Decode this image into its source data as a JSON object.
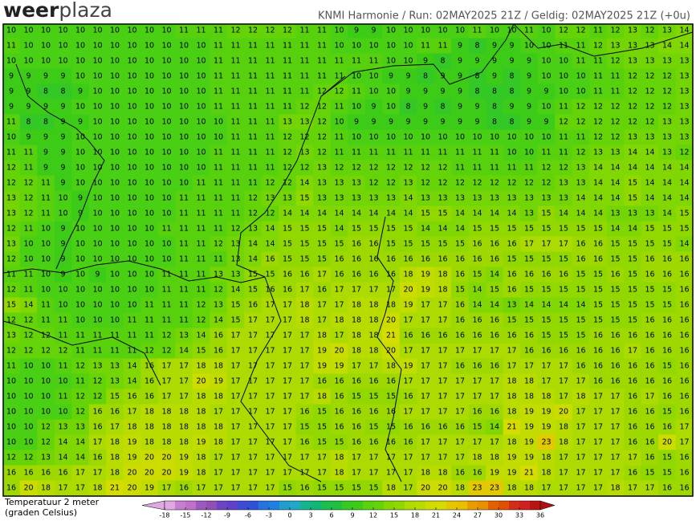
{
  "header": {
    "brand": [
      "weer",
      "plaza"
    ],
    "info": "KNMI Harmonie / Run: 02MAY2025 21Z / Geldig: 02MAY2025 21Z (+0u)"
  },
  "legend": {
    "title": [
      "Temperatuur 2 meter",
      "(graden Celsius)"
    ],
    "ticks": [
      -18,
      -15,
      -12,
      -9,
      -6,
      -3,
      0,
      3,
      6,
      9,
      12,
      15,
      18,
      21,
      24,
      27,
      30,
      33,
      36
    ],
    "colors": [
      "#e0a8e0",
      "#c070c8",
      "#9050b8",
      "#6040c8",
      "#3050d8",
      "#2080e0",
      "#20a8c8",
      "#10b878",
      "#20c040",
      "#3ccc18",
      "#64d408",
      "#90d800",
      "#b8dc00",
      "#d6dc00",
      "#e8c000",
      "#e89000",
      "#e05000",
      "#d02020",
      "#b01010"
    ]
  },
  "map": {
    "grid": [
      [
        10,
        10,
        10,
        10,
        10,
        10,
        10,
        10,
        10,
        10,
        11,
        11,
        11,
        12,
        12,
        12,
        12,
        11,
        11,
        10,
        9,
        9,
        10,
        10,
        10,
        10,
        10,
        11,
        10,
        10,
        11,
        10,
        12,
        12,
        11,
        12,
        13,
        12,
        13,
        14
      ],
      [
        11,
        10,
        10,
        10,
        10,
        10,
        10,
        10,
        10,
        10,
        10,
        10,
        11,
        11,
        11,
        11,
        11,
        11,
        11,
        10,
        10,
        10,
        10,
        10,
        11,
        11,
        9,
        8,
        9,
        9,
        10,
        10,
        11,
        11,
        12,
        13,
        13,
        13,
        14,
        14
      ],
      [
        10,
        10,
        10,
        10,
        10,
        10,
        10,
        10,
        10,
        10,
        10,
        10,
        11,
        11,
        11,
        11,
        11,
        11,
        11,
        11,
        11,
        11,
        10,
        10,
        9,
        8,
        9,
        9,
        9,
        9,
        9,
        10,
        10,
        11,
        11,
        12,
        13,
        13,
        13,
        13
      ],
      [
        9,
        9,
        9,
        9,
        10,
        10,
        10,
        10,
        10,
        10,
        10,
        10,
        11,
        11,
        11,
        11,
        11,
        11,
        11,
        11,
        10,
        10,
        9,
        9,
        8,
        9,
        9,
        8,
        9,
        8,
        9,
        10,
        10,
        10,
        11,
        11,
        12,
        12,
        12,
        13
      ],
      [
        9,
        9,
        8,
        8,
        9,
        10,
        10,
        10,
        10,
        10,
        10,
        10,
        11,
        11,
        11,
        11,
        11,
        11,
        12,
        12,
        11,
        10,
        10,
        9,
        9,
        9,
        9,
        8,
        8,
        8,
        9,
        9,
        10,
        10,
        11,
        11,
        12,
        12,
        12,
        13
      ],
      [
        9,
        9,
        9,
        9,
        10,
        10,
        10,
        10,
        10,
        10,
        10,
        10,
        11,
        11,
        11,
        11,
        11,
        12,
        12,
        11,
        10,
        9,
        10,
        8,
        9,
        8,
        9,
        9,
        8,
        9,
        9,
        10,
        11,
        12,
        12,
        12,
        12,
        12,
        12,
        13
      ],
      [
        11,
        8,
        8,
        9,
        9,
        10,
        10,
        10,
        10,
        10,
        10,
        10,
        10,
        11,
        11,
        11,
        13,
        13,
        12,
        10,
        9,
        9,
        9,
        9,
        9,
        9,
        9,
        9,
        8,
        8,
        9,
        9,
        12,
        12,
        12,
        12,
        12,
        12,
        13,
        13
      ],
      [
        10,
        9,
        9,
        9,
        10,
        10,
        10,
        10,
        10,
        10,
        10,
        10,
        10,
        11,
        11,
        11,
        12,
        12,
        12,
        11,
        10,
        10,
        10,
        10,
        10,
        10,
        10,
        10,
        10,
        10,
        10,
        10,
        11,
        11,
        12,
        12,
        13,
        13,
        13,
        13
      ],
      [
        11,
        11,
        9,
        9,
        10,
        10,
        10,
        10,
        10,
        10,
        10,
        10,
        11,
        11,
        11,
        11,
        12,
        13,
        12,
        11,
        11,
        11,
        11,
        11,
        11,
        11,
        11,
        11,
        11,
        10,
        10,
        11,
        11,
        12,
        13,
        13,
        14,
        14,
        13,
        12
      ],
      [
        12,
        11,
        9,
        9,
        10,
        10,
        10,
        10,
        10,
        10,
        10,
        10,
        11,
        11,
        11,
        11,
        12,
        12,
        13,
        12,
        12,
        12,
        12,
        12,
        12,
        12,
        11,
        11,
        11,
        11,
        11,
        12,
        12,
        13,
        14,
        14,
        14,
        14,
        14,
        14
      ],
      [
        12,
        12,
        11,
        9,
        10,
        10,
        10,
        10,
        10,
        10,
        10,
        11,
        11,
        11,
        11,
        12,
        12,
        14,
        13,
        13,
        13,
        12,
        12,
        13,
        12,
        12,
        12,
        12,
        12,
        12,
        12,
        12,
        13,
        13,
        14,
        14,
        15,
        14,
        14,
        14
      ],
      [
        13,
        12,
        11,
        10,
        9,
        10,
        10,
        10,
        10,
        10,
        11,
        11,
        11,
        11,
        12,
        13,
        13,
        15,
        13,
        13,
        13,
        13,
        13,
        14,
        13,
        13,
        13,
        13,
        13,
        13,
        13,
        13,
        13,
        14,
        14,
        14,
        15,
        14,
        14,
        14
      ],
      [
        13,
        12,
        11,
        10,
        9,
        10,
        10,
        10,
        10,
        10,
        11,
        11,
        11,
        11,
        12,
        12,
        14,
        14,
        14,
        14,
        14,
        14,
        14,
        14,
        15,
        15,
        14,
        14,
        14,
        14,
        13,
        15,
        14,
        14,
        14,
        13,
        13,
        13,
        14,
        15
      ],
      [
        12,
        11,
        10,
        9,
        10,
        10,
        10,
        10,
        10,
        11,
        11,
        11,
        11,
        12,
        13,
        14,
        15,
        15,
        15,
        14,
        15,
        15,
        15,
        15,
        14,
        14,
        14,
        15,
        15,
        15,
        15,
        15,
        15,
        15,
        15,
        14,
        14,
        15,
        15,
        15
      ],
      [
        13,
        10,
        10,
        9,
        10,
        10,
        10,
        10,
        10,
        10,
        11,
        11,
        12,
        13,
        14,
        14,
        15,
        15,
        15,
        15,
        16,
        16,
        15,
        15,
        15,
        15,
        15,
        16,
        16,
        16,
        17,
        17,
        17,
        16,
        16,
        15,
        15,
        15,
        15,
        14
      ],
      [
        12,
        10,
        10,
        9,
        10,
        10,
        10,
        10,
        10,
        10,
        11,
        11,
        11,
        13,
        14,
        16,
        15,
        15,
        15,
        16,
        16,
        16,
        16,
        16,
        16,
        16,
        16,
        16,
        16,
        15,
        15,
        15,
        15,
        16,
        16,
        15,
        15,
        16,
        16,
        16
      ],
      [
        11,
        11,
        10,
        9,
        10,
        9,
        10,
        10,
        10,
        11,
        11,
        11,
        13,
        13,
        15,
        15,
        16,
        16,
        17,
        16,
        16,
        16,
        16,
        18,
        19,
        18,
        16,
        15,
        14,
        16,
        16,
        16,
        16,
        15,
        15,
        16,
        15,
        16,
        16,
        16
      ],
      [
        12,
        11,
        10,
        10,
        10,
        10,
        10,
        10,
        10,
        11,
        11,
        11,
        12,
        14,
        15,
        16,
        16,
        17,
        16,
        17,
        17,
        17,
        17,
        20,
        19,
        18,
        15,
        14,
        15,
        16,
        15,
        15,
        15,
        15,
        15,
        15,
        15,
        15,
        15,
        16
      ],
      [
        15,
        14,
        11,
        10,
        10,
        10,
        10,
        10,
        11,
        11,
        11,
        12,
        13,
        15,
        16,
        17,
        17,
        18,
        17,
        17,
        18,
        18,
        18,
        19,
        17,
        17,
        16,
        14,
        14,
        13,
        14,
        14,
        14,
        14,
        15,
        15,
        15,
        15,
        15,
        16
      ],
      [
        12,
        12,
        11,
        11,
        10,
        10,
        10,
        11,
        11,
        11,
        11,
        12,
        14,
        15,
        17,
        17,
        17,
        18,
        17,
        18,
        18,
        18,
        20,
        17,
        17,
        17,
        16,
        16,
        16,
        15,
        15,
        15,
        15,
        15,
        15,
        15,
        15,
        16,
        16,
        16
      ],
      [
        13,
        12,
        12,
        11,
        11,
        11,
        11,
        11,
        11,
        12,
        13,
        14,
        16,
        17,
        17,
        17,
        17,
        17,
        18,
        17,
        18,
        18,
        21,
        16,
        16,
        16,
        16,
        16,
        16,
        16,
        16,
        15,
        15,
        15,
        16,
        16,
        16,
        16,
        16,
        16
      ],
      [
        12,
        12,
        12,
        12,
        11,
        11,
        11,
        11,
        12,
        12,
        14,
        15,
        16,
        17,
        17,
        17,
        17,
        17,
        19,
        20,
        18,
        18,
        20,
        17,
        17,
        17,
        17,
        17,
        17,
        17,
        16,
        16,
        16,
        16,
        16,
        16,
        17,
        16,
        16,
        16
      ],
      [
        11,
        10,
        10,
        11,
        12,
        13,
        13,
        14,
        16,
        17,
        17,
        18,
        18,
        17,
        17,
        17,
        17,
        17,
        19,
        19,
        17,
        17,
        18,
        19,
        17,
        17,
        16,
        16,
        16,
        17,
        17,
        17,
        17,
        16,
        16,
        16,
        16,
        16,
        15,
        16
      ],
      [
        10,
        10,
        10,
        10,
        11,
        12,
        13,
        14,
        16,
        17,
        17,
        20,
        19,
        17,
        17,
        17,
        17,
        17,
        16,
        16,
        16,
        16,
        16,
        17,
        17,
        17,
        17,
        17,
        17,
        18,
        18,
        17,
        17,
        17,
        16,
        16,
        16,
        16,
        16,
        16
      ],
      [
        10,
        10,
        10,
        11,
        12,
        12,
        15,
        16,
        16,
        17,
        17,
        18,
        18,
        17,
        17,
        17,
        17,
        17,
        18,
        16,
        15,
        15,
        15,
        16,
        17,
        17,
        17,
        17,
        17,
        18,
        18,
        18,
        17,
        18,
        17,
        17,
        16,
        17,
        16,
        16
      ],
      [
        10,
        10,
        10,
        10,
        12,
        16,
        16,
        17,
        18,
        18,
        18,
        18,
        17,
        17,
        17,
        17,
        17,
        16,
        15,
        16,
        16,
        16,
        16,
        17,
        17,
        17,
        17,
        16,
        16,
        18,
        19,
        19,
        20,
        17,
        17,
        17,
        16,
        16,
        15,
        16
      ],
      [
        10,
        10,
        12,
        13,
        13,
        16,
        17,
        18,
        18,
        18,
        18,
        18,
        18,
        17,
        17,
        17,
        17,
        15,
        15,
        16,
        16,
        15,
        15,
        16,
        16,
        16,
        16,
        15,
        14,
        21,
        19,
        19,
        18,
        17,
        17,
        17,
        16,
        16,
        16,
        17
      ],
      [
        10,
        10,
        12,
        14,
        14,
        17,
        18,
        19,
        18,
        18,
        18,
        19,
        18,
        17,
        17,
        17,
        17,
        16,
        15,
        15,
        16,
        16,
        16,
        16,
        17,
        17,
        17,
        17,
        17,
        18,
        19,
        23,
        18,
        17,
        17,
        17,
        16,
        16,
        20,
        17
      ],
      [
        12,
        12,
        13,
        14,
        14,
        16,
        18,
        19,
        20,
        20,
        19,
        18,
        17,
        17,
        17,
        17,
        17,
        17,
        17,
        18,
        17,
        17,
        17,
        17,
        17,
        17,
        17,
        18,
        18,
        19,
        19,
        18,
        17,
        17,
        17,
        17,
        17,
        16,
        15,
        16
      ],
      [
        16,
        16,
        16,
        16,
        17,
        17,
        18,
        20,
        20,
        20,
        19,
        18,
        17,
        17,
        17,
        17,
        17,
        17,
        17,
        18,
        17,
        17,
        17,
        17,
        18,
        18,
        16,
        16,
        19,
        19,
        21,
        18,
        17,
        17,
        17,
        17,
        16,
        15,
        15,
        16
      ],
      [
        16,
        20,
        18,
        17,
        17,
        18,
        21,
        20,
        19,
        17,
        16,
        17,
        17,
        17,
        17,
        17,
        15,
        16,
        15,
        15,
        15,
        15,
        18,
        17,
        20,
        20,
        18,
        23,
        23,
        18,
        18,
        17,
        17,
        17,
        17,
        18,
        17,
        17,
        16,
        16
      ]
    ]
  }
}
